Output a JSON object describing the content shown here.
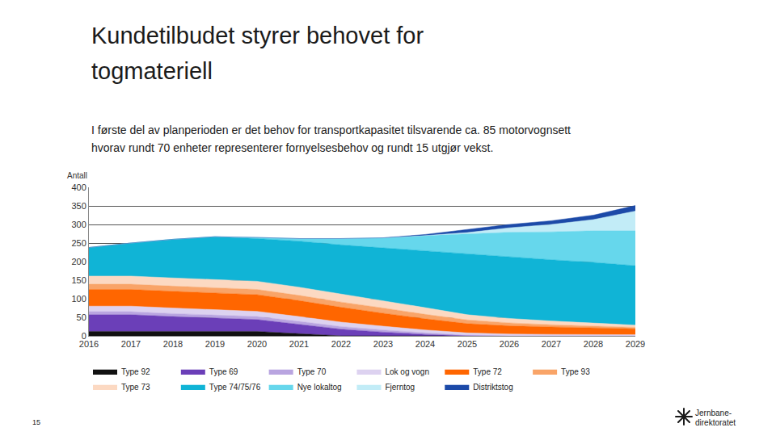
{
  "title": [
    "Kundetilbudet styrer behovet for",
    "togmateriell"
  ],
  "subtitle": [
    "I første del av planperioden er det behov for transportkapasitet tilsvarende ca. 85 motorvognsett",
    "hvorav rundt 70 enheter representerer fornyelsesbehov og rundt 15 utgjør vekst."
  ],
  "page_number": "15",
  "logo": [
    "Jernbane-",
    "direktoratet"
  ],
  "chart_data": {
    "type": "area",
    "stacked": true,
    "ylabel": "Antall",
    "x": [
      2016,
      2017,
      2018,
      2019,
      2020,
      2021,
      2022,
      2023,
      2024,
      2025,
      2026,
      2027,
      2028,
      2029
    ],
    "xlim": [
      2016,
      2029
    ],
    "xticks": [
      2016,
      2017,
      2018,
      2019,
      2020,
      2021,
      2022,
      2023,
      2024,
      2025,
      2026,
      2027,
      2028,
      2029
    ],
    "ylim": [
      0,
      400
    ],
    "yticks": [
      0,
      50,
      100,
      150,
      200,
      250,
      300,
      350,
      400
    ],
    "grid": true,
    "legend": "bottom",
    "series": [
      {
        "name": "Type 92",
        "color": "#111111",
        "values": [
          12,
          12,
          12,
          12,
          12,
          6,
          0,
          0,
          0,
          0,
          0,
          0,
          0,
          0
        ]
      },
      {
        "name": "Type 69",
        "color": "#6b3fb8",
        "values": [
          45,
          45,
          40,
          36,
          32,
          25,
          18,
          10,
          4,
          0,
          0,
          0,
          0,
          0
        ]
      },
      {
        "name": "Type 70",
        "color": "#b9a5e0",
        "values": [
          8,
          8,
          8,
          8,
          8,
          8,
          7,
          6,
          4,
          2,
          0,
          0,
          0,
          0
        ]
      },
      {
        "name": "Lok og vogn",
        "color": "#ddd2f0",
        "values": [
          15,
          15,
          15,
          15,
          14,
          13,
          12,
          10,
          8,
          6,
          5,
          4,
          3,
          3
        ]
      },
      {
        "name": "Type 72",
        "color": "#ff6600",
        "values": [
          45,
          45,
          45,
          45,
          45,
          43,
          40,
          35,
          30,
          25,
          22,
          20,
          18,
          16
        ]
      },
      {
        "name": "Type 93",
        "color": "#f9a468",
        "values": [
          14,
          14,
          14,
          14,
          14,
          14,
          14,
          14,
          12,
          10,
          8,
          6,
          5,
          4
        ]
      },
      {
        "name": "Type 73",
        "color": "#fcd9c2",
        "values": [
          22,
          22,
          22,
          22,
          22,
          22,
          22,
          20,
          18,
          14,
          12,
          10,
          8,
          6
        ]
      },
      {
        "name": "Type 74/75/76",
        "color": "#10b4d6",
        "values": [
          77,
          89,
          104,
          115,
          115,
          124,
          132,
          142,
          152,
          163,
          165,
          165,
          164,
          160
        ]
      },
      {
        "name": "Nye lokaltog",
        "color": "#66d7ec",
        "values": [
          0,
          0,
          0,
          0,
          3,
          7,
          17,
          27,
          42,
          55,
          67,
          75,
          85,
          94
        ]
      },
      {
        "name": "Fjerntog",
        "color": "#c2ecf7",
        "values": [
          0,
          0,
          0,
          0,
          0,
          0,
          0,
          0,
          0,
          3,
          12,
          20,
          30,
          53
        ]
      },
      {
        "name": "Distriktstog",
        "color": "#1c4aa8",
        "values": [
          0,
          0,
          0,
          0,
          0,
          0,
          0,
          0,
          3,
          8,
          9,
          10,
          12,
          15
        ]
      }
    ]
  }
}
